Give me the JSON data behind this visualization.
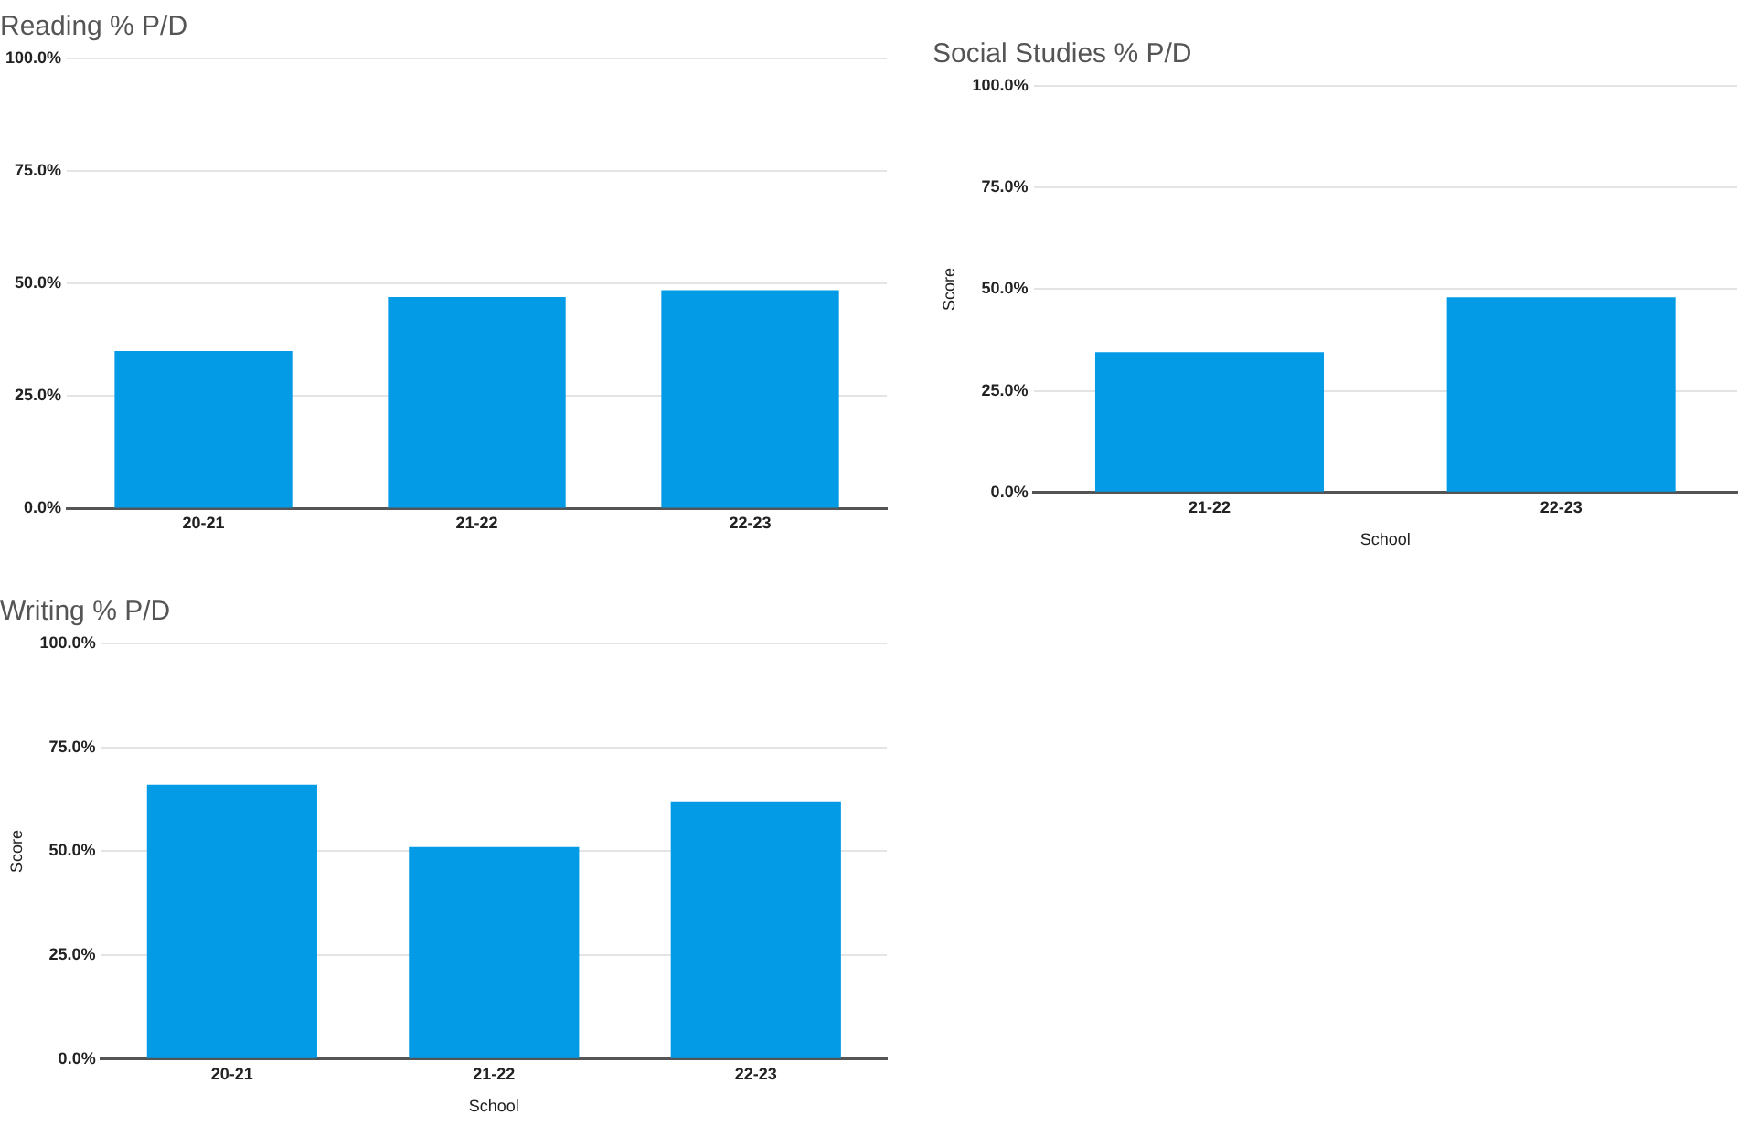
{
  "chart_data": [
    {
      "type": "bar",
      "title": "Reading % P/D",
      "categories": [
        "20-21",
        "21-22",
        "22-23"
      ],
      "values": [
        35,
        47,
        48.5
      ],
      "color": "#039be5",
      "ylim": [
        0,
        100
      ],
      "yticks": [
        {
          "value": 0,
          "label": "0.0%"
        },
        {
          "value": 25,
          "label": "25.0%"
        },
        {
          "value": 50,
          "label": "50.0%"
        },
        {
          "value": 75,
          "label": "75.0%"
        },
        {
          "value": 100,
          "label": "100.0%"
        }
      ],
      "grid": "y",
      "legend": false
    },
    {
      "type": "bar",
      "title": "Social Studies % P/D",
      "xlabel": "School",
      "ylabel": "Score",
      "categories": [
        "21-22",
        "22-23"
      ],
      "values": [
        34.5,
        48
      ],
      "color": "#039be5",
      "ylim": [
        0,
        100
      ],
      "yticks": [
        {
          "value": 0,
          "label": "0.0%"
        },
        {
          "value": 25,
          "label": "25.0%"
        },
        {
          "value": 50,
          "label": "50.0%"
        },
        {
          "value": 75,
          "label": "75.0%"
        },
        {
          "value": 100,
          "label": "100.0%"
        }
      ],
      "grid": "y",
      "legend": false
    },
    {
      "type": "bar",
      "title": "Writing % P/D",
      "xlabel": "School",
      "ylabel": "Score",
      "categories": [
        "20-21",
        "21-22",
        "22-23"
      ],
      "values": [
        66,
        51,
        62
      ],
      "color": "#039be5",
      "ylim": [
        0,
        100
      ],
      "yticks": [
        {
          "value": 0,
          "label": "0.0%"
        },
        {
          "value": 25,
          "label": "25.0%"
        },
        {
          "value": 50,
          "label": "50.0%"
        },
        {
          "value": 75,
          "label": "75.0%"
        },
        {
          "value": 100,
          "label": "100.0%"
        }
      ],
      "grid": "y",
      "legend": false
    }
  ]
}
